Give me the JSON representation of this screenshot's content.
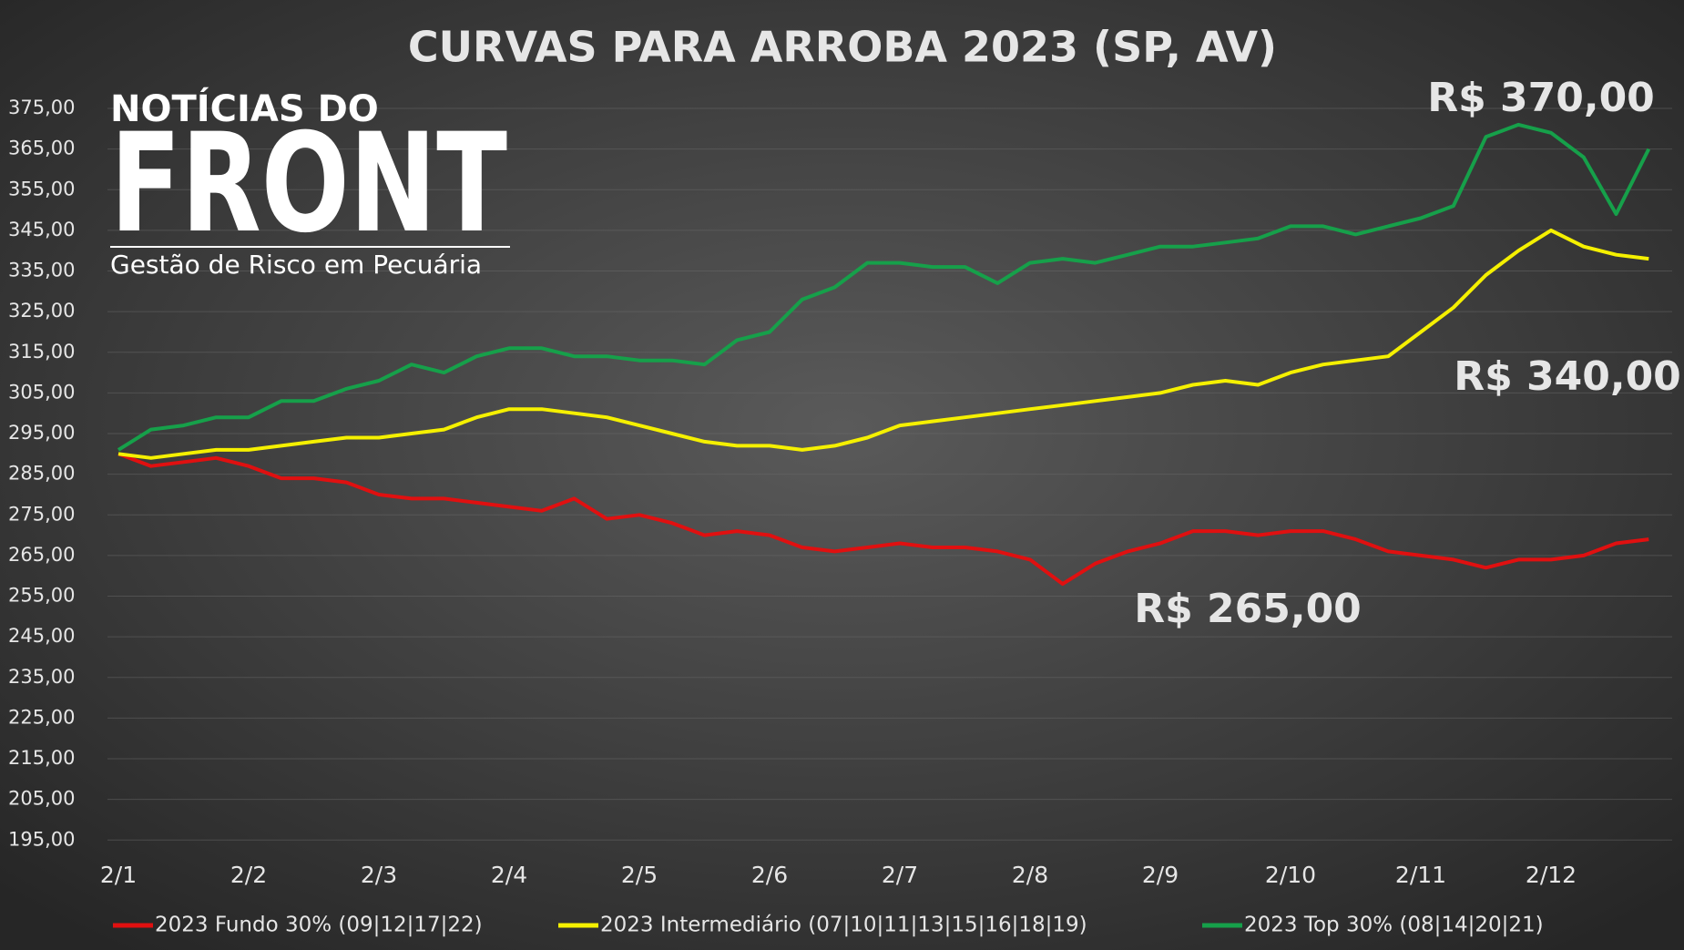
{
  "chart_data": {
    "type": "line",
    "title": "CURVAS PARA ARROBA 2023 (SP, AV)",
    "logo": {
      "top": "NOTÍCIAS DO",
      "brand": "FRONT",
      "tagline": "Gestão de Risco em Pecuária"
    },
    "annotations": [
      "R$ 370,00",
      "R$ 340,00",
      "R$ 265,00"
    ],
    "categories": [
      "2/1",
      null,
      null,
      null,
      "2/2",
      null,
      null,
      null,
      "2/3",
      null,
      null,
      null,
      "2/4",
      null,
      null,
      null,
      "2/5",
      null,
      null,
      null,
      "2/6",
      null,
      null,
      null,
      "2/7",
      null,
      null,
      null,
      "2/8",
      null,
      null,
      null,
      "2/9",
      null,
      null,
      null,
      "2/10",
      null,
      null,
      null,
      "2/11",
      null,
      null,
      null,
      "2/12",
      null,
      null,
      null
    ],
    "series": [
      {
        "name": "2023 Fundo 30% (09|12|17|22)",
        "color": "#e01010",
        "values": [
          290,
          287,
          288,
          289,
          287,
          284,
          284,
          283,
          280,
          279,
          279,
          278,
          277,
          276,
          279,
          274,
          275,
          273,
          270,
          271,
          270,
          267,
          266,
          267,
          268,
          267,
          267,
          266,
          264,
          258,
          263,
          266,
          268,
          271,
          271,
          270,
          271,
          271,
          269,
          266,
          265,
          264,
          262,
          264,
          264,
          265,
          268,
          269
        ]
      },
      {
        "name": "2023 Intermediário (07|10|11|13|15|16|18|19)",
        "color": "#f5f000",
        "values": [
          290,
          289,
          290,
          291,
          291,
          292,
          293,
          294,
          294,
          295,
          296,
          299,
          301,
          301,
          300,
          299,
          297,
          295,
          293,
          292,
          292,
          291,
          292,
          294,
          297,
          298,
          299,
          300,
          301,
          302,
          303,
          304,
          305,
          307,
          308,
          307,
          310,
          312,
          313,
          314,
          320,
          326,
          334,
          340,
          345,
          341,
          339,
          338
        ]
      },
      {
        "name": "2023 Top 30% (08|14|20|21)",
        "color": "#16a04a",
        "values": [
          291,
          296,
          297,
          299,
          299,
          303,
          303,
          306,
          308,
          312,
          310,
          314,
          316,
          316,
          314,
          314,
          313,
          313,
          312,
          318,
          320,
          328,
          331,
          337,
          337,
          336,
          336,
          332,
          337,
          338,
          337,
          339,
          341,
          341,
          342,
          343,
          346,
          346,
          344,
          346,
          348,
          351,
          368,
          371,
          369,
          363,
          349,
          365
        ]
      }
    ],
    "ylim": [
      190,
      380
    ],
    "yticks": [
      {
        "value": 195,
        "label": "195,00"
      },
      {
        "value": 205,
        "label": "205,00"
      },
      {
        "value": 215,
        "label": "215,00"
      },
      {
        "value": 225,
        "label": "225,00"
      },
      {
        "value": 235,
        "label": "235,00"
      },
      {
        "value": 245,
        "label": "245,00"
      },
      {
        "value": 255,
        "label": "255,00"
      },
      {
        "value": 265,
        "label": "265,00"
      },
      {
        "value": 275,
        "label": "275,00"
      },
      {
        "value": 285,
        "label": "285,00"
      },
      {
        "value": 295,
        "label": "295,00"
      },
      {
        "value": 305,
        "label": "305,00"
      },
      {
        "value": 315,
        "label": "315,00"
      },
      {
        "value": 325,
        "label": "325,00"
      },
      {
        "value": 335,
        "label": "335,00"
      },
      {
        "value": 345,
        "label": "345,00"
      },
      {
        "value": 355,
        "label": "355,00"
      },
      {
        "value": 365,
        "label": "365,00"
      },
      {
        "value": 375,
        "label": "375,00"
      }
    ],
    "grid": true
  }
}
